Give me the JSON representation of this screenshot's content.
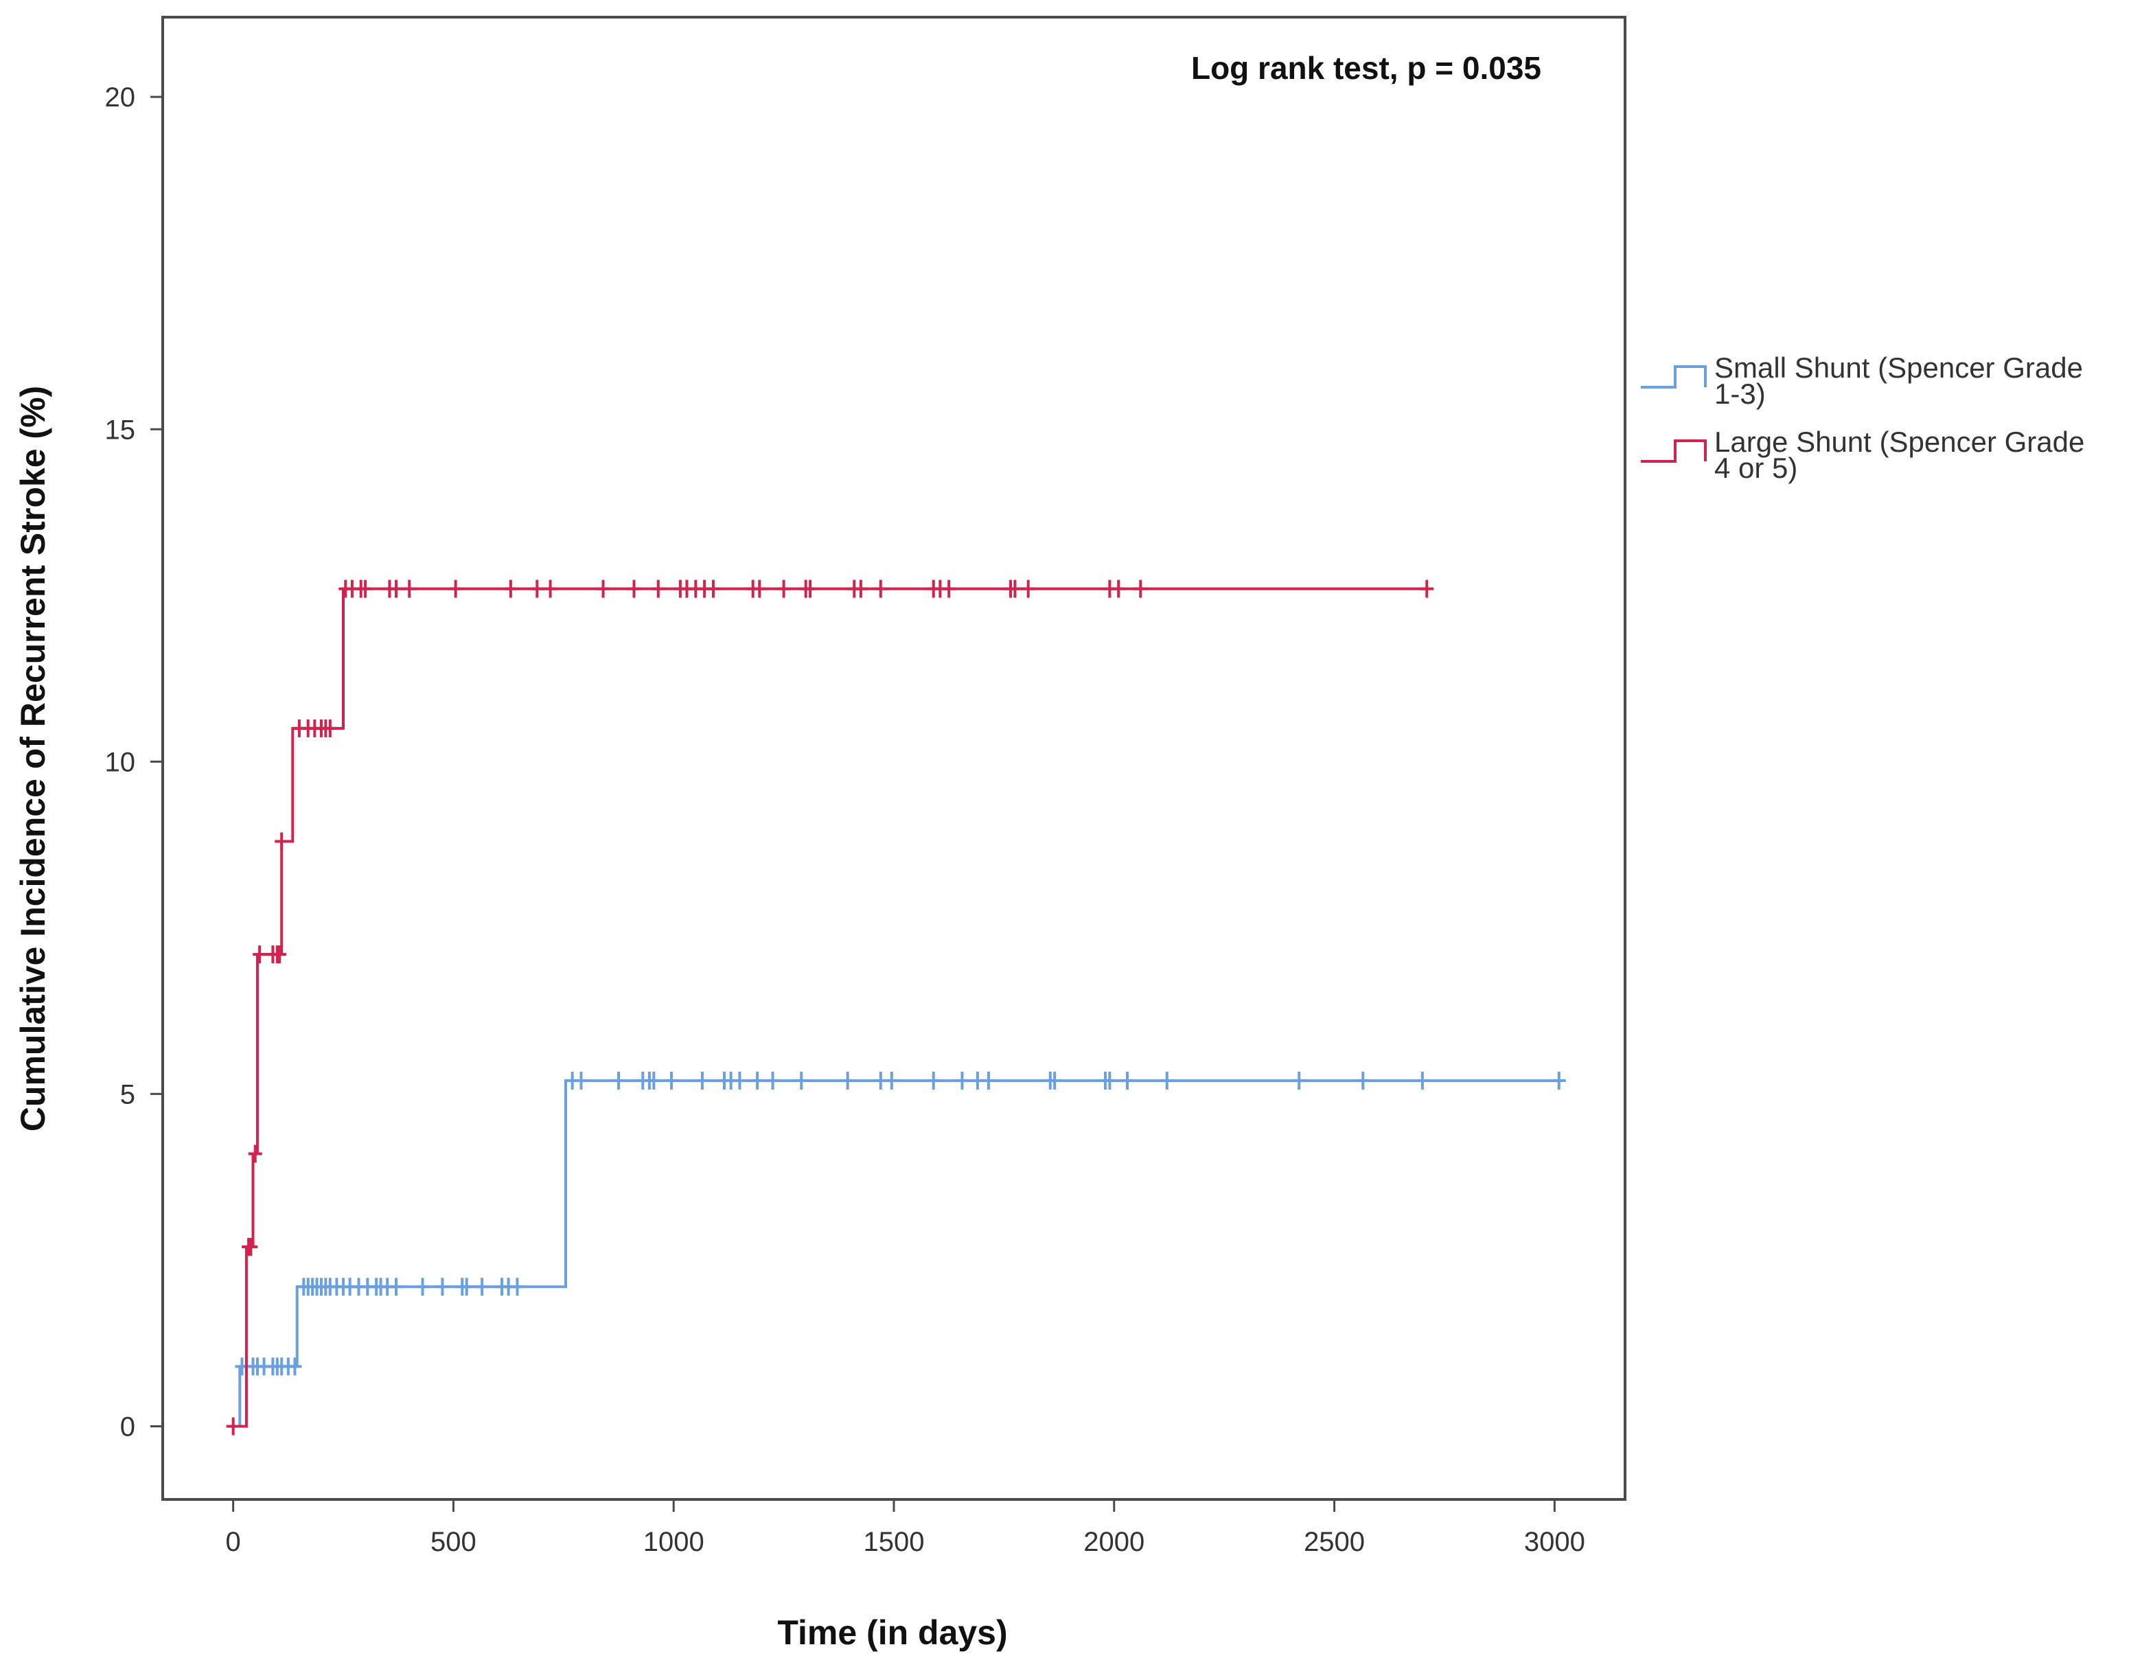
{
  "chart_data": {
    "type": "line",
    "subtype": "step (Kaplan-Meier cumulative incidence) with censor ticks",
    "title": "",
    "xlabel": "Time (in days)",
    "ylabel": "Cumulative Incidence of Recurrent Stroke (%)",
    "xlim": [
      -160,
      3160
    ],
    "ylim": [
      -1.1,
      21.2
    ],
    "xticks": [
      0,
      500,
      1000,
      1500,
      2000,
      2500,
      3000
    ],
    "yticks": [
      0,
      5,
      10,
      15,
      20
    ],
    "xtick_labels": [
      "0",
      "500",
      "1000",
      "1500",
      "2000",
      "2500",
      "3000"
    ],
    "ytick_labels": [
      "0",
      "5",
      "10",
      "15",
      "20"
    ],
    "grid": false,
    "legend_position": "right, outside plot",
    "annotation": "Log rank test, p = 0.035",
    "series": [
      {
        "name": "Small Shunt (Spencer Grade 1-3)",
        "legend_lines": [
          "Small Shunt (Spencer Grade",
          "1-3)"
        ],
        "color": "#6a9fe0",
        "steps": [
          [
            0,
            0
          ],
          [
            15,
            0
          ],
          [
            15,
            0.9
          ],
          [
            145,
            0.9
          ],
          [
            145,
            2.1
          ],
          [
            755,
            2.1
          ],
          [
            755,
            5.2
          ],
          [
            3015,
            5.2
          ]
        ],
        "censored": [
          [
            20,
            0.9
          ],
          [
            30,
            0.9
          ],
          [
            45,
            0.9
          ],
          [
            55,
            0.9
          ],
          [
            70,
            0.9
          ],
          [
            90,
            0.9
          ],
          [
            100,
            0.9
          ],
          [
            110,
            0.9
          ],
          [
            125,
            0.9
          ],
          [
            140,
            0.9
          ],
          [
            160,
            2.1
          ],
          [
            170,
            2.1
          ],
          [
            180,
            2.1
          ],
          [
            190,
            2.1
          ],
          [
            200,
            2.1
          ],
          [
            210,
            2.1
          ],
          [
            220,
            2.1
          ],
          [
            235,
            2.1
          ],
          [
            250,
            2.1
          ],
          [
            265,
            2.1
          ],
          [
            285,
            2.1
          ],
          [
            305,
            2.1
          ],
          [
            325,
            2.1
          ],
          [
            335,
            2.1
          ],
          [
            350,
            2.1
          ],
          [
            370,
            2.1
          ],
          [
            430,
            2.1
          ],
          [
            475,
            2.1
          ],
          [
            520,
            2.1
          ],
          [
            530,
            2.1
          ],
          [
            565,
            2.1
          ],
          [
            610,
            2.1
          ],
          [
            625,
            2.1
          ],
          [
            645,
            2.1
          ],
          [
            770,
            5.2
          ],
          [
            790,
            5.2
          ],
          [
            875,
            5.2
          ],
          [
            930,
            5.2
          ],
          [
            945,
            5.2
          ],
          [
            955,
            5.2
          ],
          [
            995,
            5.2
          ],
          [
            1065,
            5.2
          ],
          [
            1115,
            5.2
          ],
          [
            1130,
            5.2
          ],
          [
            1150,
            5.2
          ],
          [
            1190,
            5.2
          ],
          [
            1225,
            5.2
          ],
          [
            1290,
            5.2
          ],
          [
            1395,
            5.2
          ],
          [
            1470,
            5.2
          ],
          [
            1495,
            5.2
          ],
          [
            1590,
            5.2
          ],
          [
            1655,
            5.2
          ],
          [
            1690,
            5.2
          ],
          [
            1715,
            5.2
          ],
          [
            1855,
            5.2
          ],
          [
            1865,
            5.2
          ],
          [
            1980,
            5.2
          ],
          [
            1990,
            5.2
          ],
          [
            2030,
            5.2
          ],
          [
            2120,
            5.2
          ],
          [
            2420,
            5.2
          ],
          [
            2565,
            5.2
          ],
          [
            2700,
            5.2
          ],
          [
            3010,
            5.2
          ]
        ]
      },
      {
        "name": "Large Shunt (Spencer Grade 4 or 5)",
        "legend_lines": [
          "Large Shunt (Spencer Grade",
          "4 or 5)"
        ],
        "color": "#d0234e",
        "steps": [
          [
            0,
            0
          ],
          [
            30,
            0
          ],
          [
            30,
            2.7
          ],
          [
            45,
            2.7
          ],
          [
            45,
            4.1
          ],
          [
            55,
            4.1
          ],
          [
            55,
            7.1
          ],
          [
            110,
            7.1
          ],
          [
            110,
            8.8
          ],
          [
            135,
            8.8
          ],
          [
            135,
            10.5
          ],
          [
            250,
            10.5
          ],
          [
            250,
            12.6
          ],
          [
            2710,
            12.6
          ]
        ],
        "censored": [
          [
            0,
            0
          ],
          [
            35,
            2.7
          ],
          [
            40,
            2.7
          ],
          [
            50,
            4.1
          ],
          [
            60,
            7.1
          ],
          [
            90,
            7.1
          ],
          [
            100,
            7.1
          ],
          [
            105,
            7.1
          ],
          [
            110,
            8.8
          ],
          [
            150,
            10.5
          ],
          [
            170,
            10.5
          ],
          [
            185,
            10.5
          ],
          [
            200,
            10.5
          ],
          [
            210,
            10.5
          ],
          [
            220,
            10.5
          ],
          [
            255,
            12.6
          ],
          [
            270,
            12.6
          ],
          [
            290,
            12.6
          ],
          [
            300,
            12.6
          ],
          [
            355,
            12.6
          ],
          [
            370,
            12.6
          ],
          [
            400,
            12.6
          ],
          [
            505,
            12.6
          ],
          [
            630,
            12.6
          ],
          [
            690,
            12.6
          ],
          [
            720,
            12.6
          ],
          [
            840,
            12.6
          ],
          [
            910,
            12.6
          ],
          [
            965,
            12.6
          ],
          [
            1015,
            12.6
          ],
          [
            1030,
            12.6
          ],
          [
            1050,
            12.6
          ],
          [
            1070,
            12.6
          ],
          [
            1090,
            12.6
          ],
          [
            1180,
            12.6
          ],
          [
            1195,
            12.6
          ],
          [
            1250,
            12.6
          ],
          [
            1300,
            12.6
          ],
          [
            1310,
            12.6
          ],
          [
            1410,
            12.6
          ],
          [
            1425,
            12.6
          ],
          [
            1470,
            12.6
          ],
          [
            1590,
            12.6
          ],
          [
            1605,
            12.6
          ],
          [
            1625,
            12.6
          ],
          [
            1765,
            12.6
          ],
          [
            1775,
            12.6
          ],
          [
            1805,
            12.6
          ],
          [
            1990,
            12.6
          ],
          [
            2010,
            12.6
          ],
          [
            2060,
            12.6
          ],
          [
            2710,
            12.6
          ]
        ]
      }
    ]
  }
}
